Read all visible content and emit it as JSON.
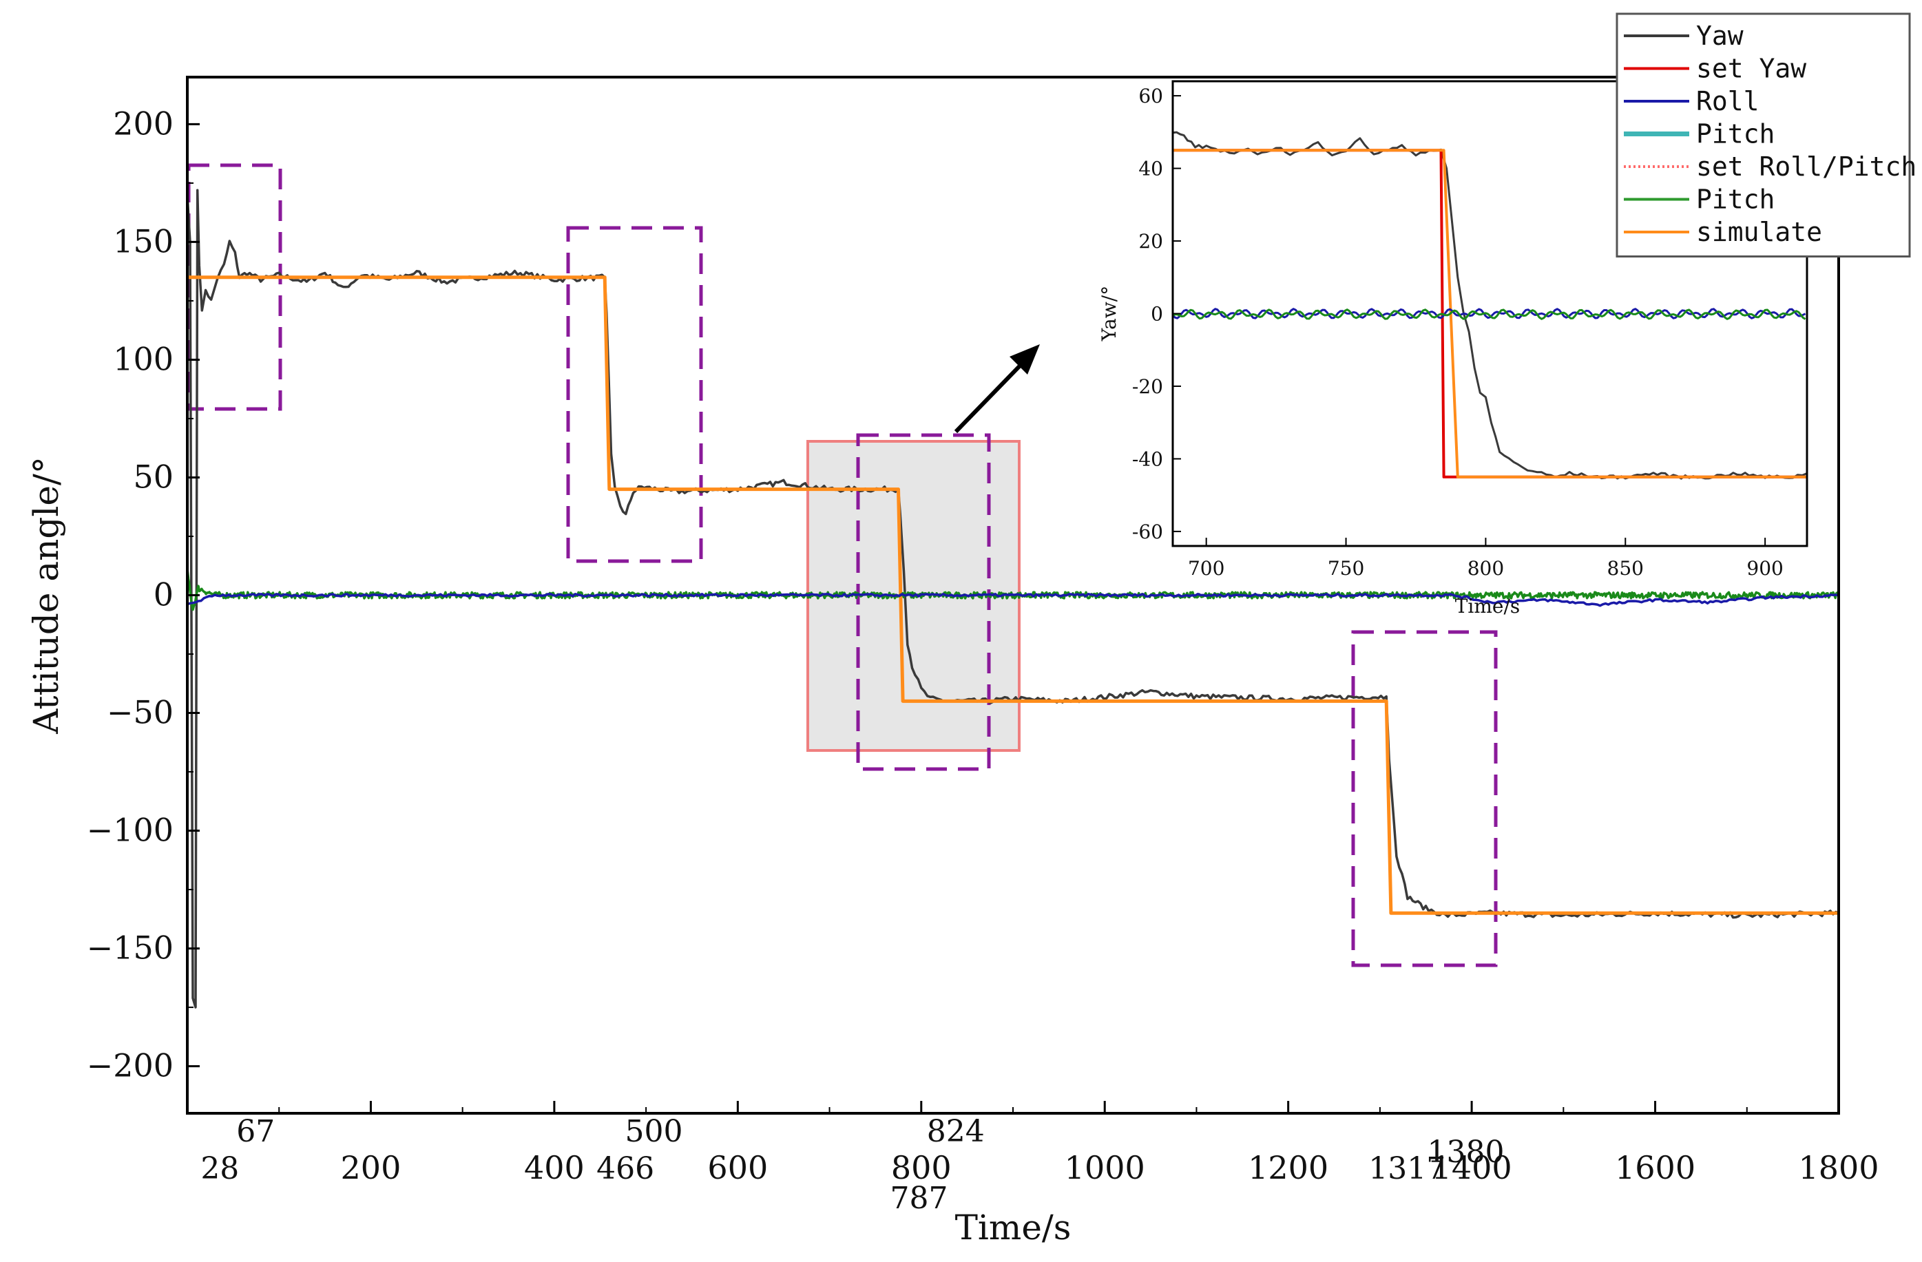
{
  "chart_data": {
    "main": {
      "type": "line",
      "xlabel": "Time/s",
      "ylabel": "Attitude angle/°",
      "xlim": [
        0,
        1800
      ],
      "ylim": [
        -220,
        220
      ],
      "yticks": [
        200,
        150,
        100,
        50,
        0,
        -50,
        -100,
        -150,
        -200
      ],
      "ytick_labels": [
        "200",
        "150",
        "100",
        "50",
        "0",
        "−50",
        "−100",
        "−150",
        "−200"
      ],
      "xticks": [
        200,
        400,
        600,
        800,
        1000,
        1200,
        1400,
        1600,
        1800
      ],
      "xtick_labels": [
        "200",
        "400",
        "600",
        "800",
        "1000",
        "1200",
        "1400",
        "1600",
        "1800"
      ],
      "event_marks": [
        {
          "t": 13,
          "label": "28",
          "row": 2
        },
        {
          "t": 52,
          "label": "67",
          "row": 0
        },
        {
          "t": 455,
          "label": "466",
          "row": 2
        },
        {
          "t": 486,
          "label": "500",
          "row": 0
        },
        {
          "t": 775,
          "label": "787",
          "row": 3
        },
        {
          "t": 815,
          "label": "824",
          "row": 0
        },
        {
          "t": 1307,
          "label": "1317",
          "row": 2
        },
        {
          "t": 1371,
          "label": "1380",
          "row": 1
        }
      ],
      "series": [
        {
          "name": "Yaw",
          "color": "#3a3a3a",
          "points": [
            [
              0,
              170
            ],
            [
              3,
              150
            ],
            [
              6,
              -170
            ],
            [
              9,
              -175
            ],
            [
              11,
              172
            ],
            [
              13,
              140
            ],
            [
              16,
              120
            ],
            [
              20,
              130
            ],
            [
              26,
              125
            ],
            [
              33,
              135
            ],
            [
              40,
              140
            ],
            [
              46,
              150
            ],
            [
              52,
              145
            ],
            [
              57,
              135
            ],
            [
              65,
              137
            ],
            [
              80,
              134
            ],
            [
              100,
              136
            ],
            [
              130,
              133
            ],
            [
              150,
              137
            ],
            [
              170,
              130
            ],
            [
              190,
              136
            ],
            [
              220,
              134
            ],
            [
              250,
              137
            ],
            [
              280,
              133
            ],
            [
              320,
              135
            ],
            [
              360,
              137
            ],
            [
              400,
              134
            ],
            [
              455,
              135
            ],
            [
              457,
              120
            ],
            [
              462,
              60
            ],
            [
              466,
              45
            ],
            [
              472,
              38
            ],
            [
              478,
              34
            ],
            [
              486,
              44
            ],
            [
              495,
              46
            ],
            [
              530,
              44
            ],
            [
              600,
              45
            ],
            [
              650,
              48
            ],
            [
              700,
              45
            ],
            [
              775,
              45
            ],
            [
              777,
              35
            ],
            [
              781,
              10
            ],
            [
              785,
              -20
            ],
            [
              790,
              -30
            ],
            [
              800,
              -40
            ],
            [
              810,
              -44
            ],
            [
              830,
              -45
            ],
            [
              870,
              -45
            ],
            [
              900,
              -44
            ],
            [
              960,
              -45
            ],
            [
              1050,
              -41
            ],
            [
              1100,
              -43
            ],
            [
              1200,
              -44
            ],
            [
              1307,
              -43
            ],
            [
              1310,
              -70
            ],
            [
              1318,
              -110
            ],
            [
              1330,
              -128
            ],
            [
              1350,
              -133
            ],
            [
              1371,
              -136
            ],
            [
              1420,
              -135
            ],
            [
              1500,
              -136
            ],
            [
              1600,
              -135
            ],
            [
              1700,
              -136
            ],
            [
              1800,
              -135
            ]
          ]
        },
        {
          "name": "simulate",
          "color": "#ff8c1a",
          "points": [
            [
              0,
              135
            ],
            [
              455,
              135
            ],
            [
              460,
              45
            ],
            [
              775,
              45
            ],
            [
              780,
              -45
            ],
            [
              1307,
              -45
            ],
            [
              1312,
              -135
            ],
            [
              1800,
              -135
            ]
          ]
        },
        {
          "name": "Pitch",
          "color": "#1a8a1a",
          "points": [
            [
              0,
              10
            ],
            [
              6,
              -6
            ],
            [
              12,
              3
            ],
            [
              30,
              0
            ],
            [
              200,
              0
            ],
            [
              400,
              0
            ],
            [
              600,
              0
            ],
            [
              800,
              0
            ],
            [
              1000,
              0
            ],
            [
              1200,
              0
            ],
            [
              1400,
              0
            ],
            [
              1600,
              0
            ],
            [
              1800,
              0
            ]
          ]
        },
        {
          "name": "Roll",
          "color": "#1a1aa8",
          "points": [
            [
              0,
              -4
            ],
            [
              30,
              0
            ],
            [
              600,
              0
            ],
            [
              800,
              0
            ],
            [
              1000,
              0
            ],
            [
              1200,
              0
            ],
            [
              1380,
              0
            ],
            [
              1420,
              -3
            ],
            [
              1480,
              -2
            ],
            [
              1540,
              -4
            ],
            [
              1600,
              -2
            ],
            [
              1660,
              -3
            ],
            [
              1720,
              -1
            ],
            [
              1800,
              0
            ]
          ]
        }
      ]
    },
    "inset": {
      "type": "line",
      "xlabel": "Time/s",
      "ylabel": "Yaw/°",
      "xlim": [
        688,
        915
      ],
      "ylim": [
        -64,
        64
      ],
      "yticks": [
        60,
        40,
        20,
        0,
        -20,
        -40,
        -60
      ],
      "ytick_labels": [
        "60",
        "40",
        "20",
        "0",
        "-20",
        "-40",
        "-60"
      ],
      "xticks": [
        700,
        750,
        800,
        850,
        900
      ],
      "xtick_labels": [
        "700",
        "750",
        "800",
        "850",
        "900"
      ],
      "series": [
        {
          "name": "Yaw",
          "color": "#3a3a3a",
          "points": [
            [
              688,
              50
            ],
            [
              692,
              49
            ],
            [
              696,
              46
            ],
            [
              700,
              46
            ],
            [
              705,
              45
            ],
            [
              710,
              44
            ],
            [
              715,
              45
            ],
            [
              720,
              44
            ],
            [
              725,
              46
            ],
            [
              730,
              44
            ],
            [
              735,
              45
            ],
            [
              740,
              47
            ],
            [
              745,
              44
            ],
            [
              750,
              45
            ],
            [
              755,
              48
            ],
            [
              760,
              44
            ],
            [
              765,
              45
            ],
            [
              770,
              46
            ],
            [
              775,
              44
            ],
            [
              780,
              45
            ],
            [
              784,
              45
            ],
            [
              786,
              40
            ],
            [
              788,
              25
            ],
            [
              790,
              10
            ],
            [
              792,
              0
            ],
            [
              794,
              -5
            ],
            [
              796,
              -15
            ],
            [
              798,
              -22
            ],
            [
              800,
              -23
            ],
            [
              802,
              -30
            ],
            [
              805,
              -38
            ],
            [
              810,
              -41
            ],
            [
              815,
              -43
            ],
            [
              820,
              -44
            ],
            [
              825,
              -45
            ],
            [
              830,
              -44
            ],
            [
              840,
              -45
            ],
            [
              850,
              -45
            ],
            [
              860,
              -44
            ],
            [
              870,
              -45
            ],
            [
              880,
              -45
            ],
            [
              890,
              -44
            ],
            [
              900,
              -45
            ],
            [
              910,
              -45
            ],
            [
              915,
              -44
            ]
          ]
        },
        {
          "name": "set Yaw",
          "color": "#e00000",
          "points": [
            [
              688,
              45
            ],
            [
              784,
              45
            ],
            [
              785,
              -45
            ],
            [
              915,
              -45
            ]
          ]
        },
        {
          "name": "simulate",
          "color": "#ff8c1a",
          "points": [
            [
              688,
              45
            ],
            [
              785,
              45
            ],
            [
              790,
              -45
            ],
            [
              915,
              -45
            ]
          ]
        },
        {
          "name": "Roll",
          "color": "#1a1aa8",
          "points": [
            [
              688,
              1
            ],
            [
              700,
              0
            ],
            [
              712,
              1
            ],
            [
              725,
              0
            ],
            [
              740,
              1
            ],
            [
              760,
              0
            ],
            [
              780,
              1
            ],
            [
              800,
              -1
            ],
            [
              820,
              0
            ],
            [
              840,
              1
            ],
            [
              860,
              0
            ],
            [
              880,
              -1
            ],
            [
              900,
              0
            ],
            [
              915,
              -1
            ]
          ]
        },
        {
          "name": "Pitch",
          "color": "#1a8a1a",
          "points": [
            [
              688,
              -2
            ],
            [
              700,
              1
            ],
            [
              712,
              -1
            ],
            [
              725,
              1
            ],
            [
              740,
              -1
            ],
            [
              760,
              1
            ],
            [
              780,
              0
            ],
            [
              800,
              1
            ],
            [
              820,
              -1
            ],
            [
              840,
              1
            ],
            [
              860,
              -1
            ],
            [
              880,
              1
            ],
            [
              900,
              0
            ],
            [
              915,
              1
            ]
          ]
        }
      ]
    },
    "legend": [
      {
        "label": "Yaw",
        "color": "#3a3a3a",
        "style": "solid"
      },
      {
        "label": "set Yaw",
        "color": "#e00000",
        "style": "solid"
      },
      {
        "label": "Roll",
        "color": "#1a1aa8",
        "style": "solid"
      },
      {
        "label": "Pitch",
        "color": "#3fb5b5",
        "style": "solid"
      },
      {
        "label": "set Roll/Pitch",
        "color": "#ff6a6a",
        "style": "dotted"
      },
      {
        "label": "Pitch",
        "color": "#2e9a2e",
        "style": "solid"
      },
      {
        "label": "simulate",
        "color": "#ff8c1a",
        "style": "solid"
      }
    ]
  }
}
